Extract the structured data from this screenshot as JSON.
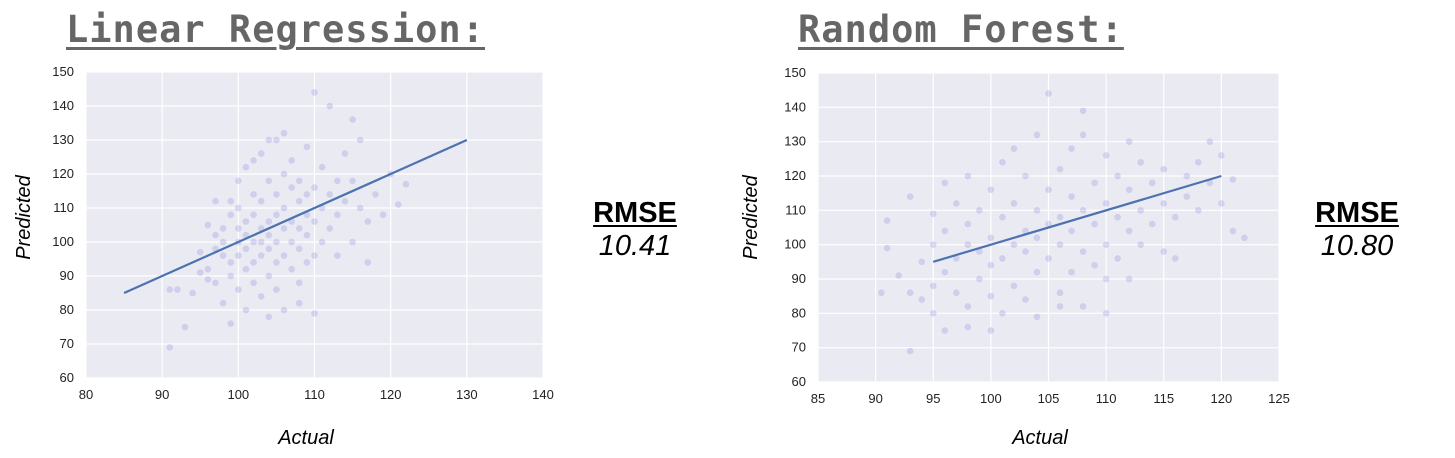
{
  "panels": [
    {
      "title": "Linear Regression:",
      "metric_label": "RMSE",
      "metric_value": "10.41"
    },
    {
      "title": "Random Forest:",
      "metric_label": "RMSE",
      "metric_value": "10.80"
    }
  ],
  "colors": {
    "plot_background": "#eaeaf2",
    "grid": "#ffffff",
    "points": "#6d6ddb",
    "fit_line": "#4c72b0",
    "title": "#666666"
  },
  "chart_data": [
    {
      "type": "scatter",
      "title": "Linear Regression:",
      "xlabel": "Actual",
      "ylabel": "Predicted",
      "xlim": [
        80,
        140
      ],
      "ylim": [
        60,
        150
      ],
      "xticks": [
        80,
        90,
        100,
        110,
        120,
        130,
        140
      ],
      "yticks": [
        60,
        70,
        80,
        90,
        100,
        110,
        120,
        130,
        140,
        150
      ],
      "grid": true,
      "fit_line": {
        "x": [
          85,
          130
        ],
        "y": [
          85,
          130
        ]
      },
      "points": [
        [
          91,
          69
        ],
        [
          93,
          75
        ],
        [
          92,
          86
        ],
        [
          91,
          86
        ],
        [
          94,
          85
        ],
        [
          95,
          91
        ],
        [
          96,
          89
        ],
        [
          96,
          92
        ],
        [
          97,
          98
        ],
        [
          97,
          102
        ],
        [
          98,
          96
        ],
        [
          98,
          100
        ],
        [
          98,
          104
        ],
        [
          99,
          90
        ],
        [
          99,
          94
        ],
        [
          99,
          108
        ],
        [
          99,
          112
        ],
        [
          100,
          86
        ],
        [
          100,
          96
        ],
        [
          100,
          100
        ],
        [
          100,
          104
        ],
        [
          100,
          110
        ],
        [
          100,
          118
        ],
        [
          101,
          92
        ],
        [
          101,
          98
        ],
        [
          101,
          102
        ],
        [
          101,
          106
        ],
        [
          101,
          122
        ],
        [
          102,
          88
        ],
        [
          102,
          94
        ],
        [
          102,
          100
        ],
        [
          102,
          108
        ],
        [
          102,
          114
        ],
        [
          103,
          84
        ],
        [
          103,
          96
        ],
        [
          103,
          100
        ],
        [
          103,
          104
        ],
        [
          103,
          112
        ],
        [
          103,
          126
        ],
        [
          104,
          90
        ],
        [
          104,
          98
        ],
        [
          104,
          102
        ],
        [
          104,
          106
        ],
        [
          104,
          118
        ],
        [
          105,
          86
        ],
        [
          105,
          94
        ],
        [
          105,
          100
        ],
        [
          105,
          108
        ],
        [
          105,
          114
        ],
        [
          105,
          130
        ],
        [
          106,
          80
        ],
        [
          106,
          96
        ],
        [
          106,
          104
        ],
        [
          106,
          110
        ],
        [
          106,
          120
        ],
        [
          107,
          92
        ],
        [
          107,
          100
        ],
        [
          107,
          106
        ],
        [
          107,
          116
        ],
        [
          107,
          124
        ],
        [
          108,
          88
        ],
        [
          108,
          98
        ],
        [
          108,
          104
        ],
        [
          108,
          112
        ],
        [
          108,
          118
        ],
        [
          109,
          94
        ],
        [
          109,
          102
        ],
        [
          109,
          108
        ],
        [
          109,
          114
        ],
        [
          109,
          128
        ],
        [
          110,
          79
        ],
        [
          110,
          96
        ],
        [
          110,
          106
        ],
        [
          110,
          116
        ],
        [
          110,
          144
        ],
        [
          111,
          100
        ],
        [
          111,
          110
        ],
        [
          111,
          122
        ],
        [
          112,
          104
        ],
        [
          112,
          114
        ],
        [
          112,
          140
        ],
        [
          113,
          96
        ],
        [
          113,
          108
        ],
        [
          113,
          118
        ],
        [
          114,
          112
        ],
        [
          114,
          126
        ],
        [
          115,
          100
        ],
        [
          115,
          118
        ],
        [
          115,
          136
        ],
        [
          116,
          110
        ],
        [
          116,
          130
        ],
        [
          117,
          94
        ],
        [
          117,
          106
        ],
        [
          118,
          114
        ],
        [
          119,
          108
        ],
        [
          120,
          120
        ],
        [
          121,
          111
        ],
        [
          122,
          117
        ],
        [
          97,
          112
        ],
        [
          98,
          82
        ],
        [
          99,
          76
        ],
        [
          101,
          80
        ],
        [
          102,
          124
        ],
        [
          104,
          78
        ],
        [
          106,
          132
        ],
        [
          108,
          82
        ],
        [
          104,
          130
        ],
        [
          96,
          105
        ],
        [
          95,
          97
        ],
        [
          97,
          88
        ]
      ]
    },
    {
      "type": "scatter",
      "title": "Random Forest:",
      "xlabel": "Actual",
      "ylabel": "Predicted",
      "xlim": [
        85,
        125
      ],
      "ylim": [
        60,
        150
      ],
      "xticks": [
        85,
        90,
        95,
        100,
        105,
        110,
        115,
        120,
        125
      ],
      "yticks": [
        60,
        70,
        80,
        90,
        100,
        110,
        120,
        130,
        140,
        150
      ],
      "grid": true,
      "fit_line": {
        "x": [
          95,
          120
        ],
        "y": [
          95,
          120
        ]
      },
      "points": [
        [
          90.5,
          86
        ],
        [
          91,
          99
        ],
        [
          91,
          107
        ],
        [
          92,
          91
        ],
        [
          93,
          69
        ],
        [
          93,
          86
        ],
        [
          93,
          114
        ],
        [
          94,
          84
        ],
        [
          94,
          95
        ],
        [
          95,
          80
        ],
        [
          95,
          88
        ],
        [
          95,
          100
        ],
        [
          95,
          109
        ],
        [
          96,
          75
        ],
        [
          96,
          92
        ],
        [
          96,
          104
        ],
        [
          96,
          118
        ],
        [
          97,
          86
        ],
        [
          97,
          96
        ],
        [
          97,
          112
        ],
        [
          98,
          82
        ],
        [
          98,
          100
        ],
        [
          98,
          106
        ],
        [
          98,
          120
        ],
        [
          99,
          90
        ],
        [
          99,
          98
        ],
        [
          99,
          110
        ],
        [
          100,
          75
        ],
        [
          100,
          94
        ],
        [
          100,
          102
        ],
        [
          100,
          116
        ],
        [
          101,
          80
        ],
        [
          101,
          96
        ],
        [
          101,
          108
        ],
        [
          101,
          124
        ],
        [
          102,
          88
        ],
        [
          102,
          100
        ],
        [
          102,
          112
        ],
        [
          103,
          84
        ],
        [
          103,
          98
        ],
        [
          103,
          104
        ],
        [
          103,
          120
        ],
        [
          104,
          79
        ],
        [
          104,
          92
        ],
        [
          104,
          102
        ],
        [
          104,
          110
        ],
        [
          104,
          132
        ],
        [
          105,
          96
        ],
        [
          105,
          106
        ],
        [
          105,
          116
        ],
        [
          105,
          144
        ],
        [
          106,
          86
        ],
        [
          106,
          100
        ],
        [
          106,
          108
        ],
        [
          106,
          122
        ],
        [
          107,
          92
        ],
        [
          107,
          104
        ],
        [
          107,
          114
        ],
        [
          107,
          128
        ],
        [
          108,
          82
        ],
        [
          108,
          98
        ],
        [
          108,
          110
        ],
        [
          108,
          139
        ],
        [
          109,
          94
        ],
        [
          109,
          106
        ],
        [
          109,
          118
        ],
        [
          110,
          80
        ],
        [
          110,
          100
        ],
        [
          110,
          112
        ],
        [
          110,
          126
        ],
        [
          111,
          96
        ],
        [
          111,
          108
        ],
        [
          111,
          120
        ],
        [
          112,
          90
        ],
        [
          112,
          104
        ],
        [
          112,
          116
        ],
        [
          112,
          130
        ],
        [
          113,
          100
        ],
        [
          113,
          110
        ],
        [
          113,
          124
        ],
        [
          114,
          106
        ],
        [
          114,
          118
        ],
        [
          115,
          98
        ],
        [
          115,
          112
        ],
        [
          115,
          122
        ],
        [
          116,
          108
        ],
        [
          116,
          96
        ],
        [
          117,
          114
        ],
        [
          117,
          120
        ],
        [
          118,
          110
        ],
        [
          118,
          124
        ],
        [
          119,
          118
        ],
        [
          119,
          130
        ],
        [
          120,
          112
        ],
        [
          120,
          126
        ],
        [
          121,
          119
        ],
        [
          121,
          104
        ],
        [
          122,
          102
        ],
        [
          102,
          128
        ],
        [
          106,
          82
        ],
        [
          98,
          76
        ],
        [
          100,
          85
        ],
        [
          110,
          90
        ],
        [
          108,
          132
        ]
      ]
    }
  ]
}
